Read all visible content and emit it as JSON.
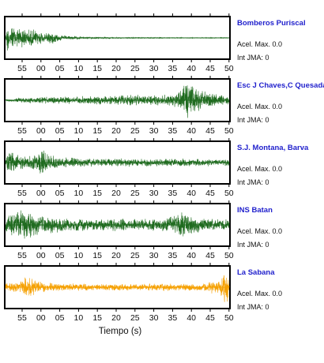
{
  "chart_data": {
    "type": "line",
    "xlabel": "Tiempo (s)",
    "tick_labels": [
      "55",
      "00",
      "05",
      "10",
      "15",
      "20",
      "25",
      "30",
      "35",
      "40",
      "45",
      "50"
    ],
    "panels": [
      {
        "station": "Bomberos Puriscal",
        "acel_label": "Acel. Max.",
        "acel_value": "0.0",
        "int_label": "Int JMA:",
        "int_value": "0",
        "color": "#1f6b1f",
        "envelope": [
          [
            0,
            0.02
          ],
          [
            0.01,
            0.9
          ],
          [
            0.02,
            0.75
          ],
          [
            0.04,
            0.55
          ],
          [
            0.07,
            0.6
          ],
          [
            0.1,
            0.45
          ],
          [
            0.13,
            0.5
          ],
          [
            0.17,
            0.3
          ],
          [
            0.2,
            0.35
          ],
          [
            0.25,
            0.15
          ],
          [
            0.3,
            0.1
          ],
          [
            0.35,
            0.06
          ],
          [
            0.45,
            0.04
          ],
          [
            0.6,
            0.03
          ],
          [
            0.8,
            0.02
          ],
          [
            1,
            0.02
          ]
        ]
      },
      {
        "station": "Esc J Chaves,C Quesada",
        "acel_label": "Acel. Max.",
        "acel_value": "0.0",
        "int_label": "Int JMA:",
        "int_value": "0",
        "color": "#1f6b1f",
        "envelope": [
          [
            0,
            0.05
          ],
          [
            0.05,
            0.12
          ],
          [
            0.15,
            0.18
          ],
          [
            0.3,
            0.2
          ],
          [
            0.5,
            0.25
          ],
          [
            0.6,
            0.3
          ],
          [
            0.7,
            0.28
          ],
          [
            0.75,
            0.35
          ],
          [
            0.78,
            0.5
          ],
          [
            0.8,
            0.85
          ],
          [
            0.82,
            0.95
          ],
          [
            0.86,
            0.7
          ],
          [
            0.9,
            0.4
          ],
          [
            0.95,
            0.3
          ],
          [
            1,
            0.25
          ]
        ]
      },
      {
        "station": "S.J. Montana, Barva",
        "acel_label": "Acel. Max.",
        "acel_value": "0.0",
        "int_label": "Int JMA:",
        "int_value": "0",
        "color": "#1f6b1f",
        "envelope": [
          [
            0,
            0.3
          ],
          [
            0.02,
            0.7
          ],
          [
            0.05,
            0.45
          ],
          [
            0.1,
            0.35
          ],
          [
            0.14,
            0.5
          ],
          [
            0.16,
            0.95
          ],
          [
            0.18,
            0.45
          ],
          [
            0.25,
            0.3
          ],
          [
            0.35,
            0.25
          ],
          [
            0.5,
            0.22
          ],
          [
            0.7,
            0.2
          ],
          [
            0.85,
            0.2
          ],
          [
            1,
            0.18
          ]
        ]
      },
      {
        "station": "INS Batan",
        "acel_label": "Acel. Max.",
        "acel_value": "0.0",
        "int_label": "Int JMA:",
        "int_value": "0",
        "color": "#1f6b1f",
        "envelope": [
          [
            0,
            0.45
          ],
          [
            0.05,
            0.75
          ],
          [
            0.1,
            0.85
          ],
          [
            0.14,
            0.6
          ],
          [
            0.2,
            0.45
          ],
          [
            0.3,
            0.35
          ],
          [
            0.4,
            0.3
          ],
          [
            0.5,
            0.35
          ],
          [
            0.6,
            0.3
          ],
          [
            0.72,
            0.4
          ],
          [
            0.76,
            0.5
          ],
          [
            0.79,
            0.9
          ],
          [
            0.82,
            0.55
          ],
          [
            0.88,
            0.35
          ],
          [
            0.95,
            0.3
          ],
          [
            1,
            0.3
          ]
        ]
      },
      {
        "station": "La Sabana",
        "acel_label": "Acel. Max.",
        "acel_value": "0.0",
        "int_label": "Int JMA:",
        "int_value": "0",
        "color": "#f5a000",
        "envelope": [
          [
            0,
            0.2
          ],
          [
            0.05,
            0.3
          ],
          [
            0.1,
            0.6
          ],
          [
            0.14,
            0.35
          ],
          [
            0.2,
            0.25
          ],
          [
            0.3,
            0.2
          ],
          [
            0.4,
            0.18
          ],
          [
            0.5,
            0.2
          ],
          [
            0.6,
            0.18
          ],
          [
            0.7,
            0.2
          ],
          [
            0.8,
            0.2
          ],
          [
            0.9,
            0.25
          ],
          [
            0.96,
            0.5
          ],
          [
            0.985,
            0.95
          ],
          [
            1,
            0.6
          ]
        ]
      }
    ]
  }
}
